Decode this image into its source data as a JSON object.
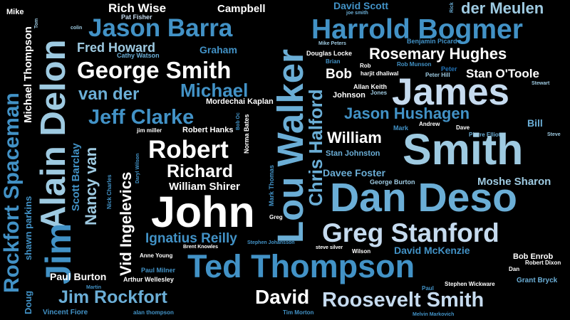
{
  "palette": {
    "background": "#000000",
    "white": "#ffffff",
    "pale": "#c6dbef",
    "light": "#9ecae1",
    "mid": "#6baed6",
    "blue": "#4292c6",
    "deep": "#2171b5",
    "navy": "#08519c"
  },
  "words": {
    "mike": "Mike",
    "tom": "Tom",
    "colin": "colin",
    "rich_wise": "Rich Wise",
    "pat_fisher": "Pat Fisher",
    "campbell": "Campbell",
    "joe_smith": "joe smith",
    "david_scott": "David Scott",
    "rick": "Rick",
    "der_meulen": "der Meulen",
    "rockfort_spaceman": "Rockfort Spaceman",
    "michael_thompson": "Michael Thompson",
    "alain_delon": "Alain Delon",
    "jason_barra": "Jason Barra",
    "lou_walker": "Lou Walker",
    "harrold_bogmer": "Harrold Bogmer",
    "fred_howard": "Fred Howard",
    "graham": "Graham",
    "cathy_watson": "Cathy Watson",
    "mike_peters": "Mike Peters",
    "benjamin_picard": "Benjamin Picard",
    "douglas_locke": "Douglas Locke",
    "rosemary_hughes": "Rosemary Hughes",
    "george_smith": "George Smith",
    "brian": "Brian",
    "rob": "Rob",
    "rob_munson": "Rob Munson",
    "peter": "Peter",
    "bob": "Bob",
    "harjit_dhaliwal": "harjit dhaliwal",
    "peter_hill": "Peter Hill",
    "stan_otoole": "Stan O'Toole",
    "stewart": "Stewart",
    "james": "James",
    "van_der": "van der",
    "michael": "Michael",
    "allan_keith": "Allan Keith",
    "jones": "Jones",
    "johnson": "Johnson",
    "mordechai_kaplan": "Mordechai Kaplan",
    "chris_halford": "Chris Halford",
    "jeff_clarke": "Jeff Clarke",
    "jason_hushagen": "Jason Hushagen",
    "bob_oc": "Bob Oc",
    "norma_bates": "Norma Bates",
    "jim_miller": "jim miller",
    "robert_hanks": "Robert Hanks",
    "mark": "Mark",
    "andrew": "Andrew",
    "dave": "Dave",
    "pierre_elliot": "Pierre Elliot",
    "bill": "Bill",
    "steve": "Steve",
    "scott_barclay": "Scott Barclay",
    "william": "William",
    "smith": "Smith",
    "vid_ingelevics": "Vid Ingelevics",
    "robert": "Robert",
    "stan_johnston": "Stan Johnston",
    "nancy_van": "Nancy van",
    "nick_charles": "Nick Charles",
    "daryl_wilson": "Daryl Wilson",
    "richard": "Richard",
    "mark_thomas": "Mark Thomas",
    "davee_foster": "Davee Foster",
    "moshe_sharon": "Moshe Sharon",
    "william_shirer": "William Shirer",
    "george_burton": "George Burton",
    "shawn_parkins": "shawn parkins",
    "dan_deso": "Dan Deso",
    "jim": "Jim",
    "john": "John",
    "greg": "Greg",
    "greg_stanford": "Greg Stanford",
    "ignatius_reilly": "Ignatius Reilly",
    "brent_knowles": "Brent Knowles",
    "stephen_johansson": "Stephen Johansson",
    "steve_silver": "steve silver",
    "wilson": "Wilson",
    "david_mckenzie": "David McKenzie",
    "anne_young": "Anne Young",
    "ted_thompson": "Ted Thompson",
    "bob_enrob": "Bob Enrob",
    "robert_dixon": "Robert Dixon",
    "dan": "Dan",
    "paul_milner": "Paul Milner",
    "paul_burton": "Paul Burton",
    "arthur_wellesley": "Arthur Wellesley",
    "grant_bryck": "Grant Bryck",
    "martin": "Martin",
    "paul": "Paul",
    "stephen_wickware": "Stephen Wickware",
    "doug": "Doug",
    "jim_rockfort": "Jim Rockfort",
    "david": "David",
    "roosevelt_smith": "Roosevelt Smith",
    "vincent_fiore": "Vincent Fiore",
    "alan_thompson": "alan thompson",
    "tim_morton": "Tim Morton",
    "melvin_markovich": "Melvin Markovich"
  }
}
